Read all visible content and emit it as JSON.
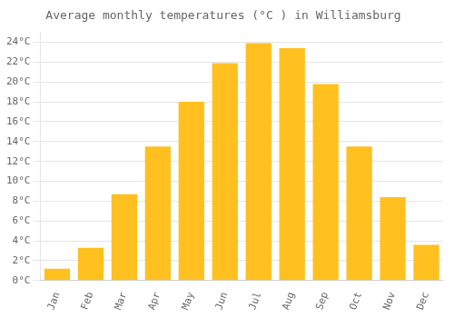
{
  "chart_data": {
    "type": "bar",
    "title": "Average monthly temperatures (°C ) in Williamsburg",
    "categories": [
      "Jan",
      "Feb",
      "Mar",
      "Apr",
      "May",
      "Jun",
      "Jul",
      "Aug",
      "Sep",
      "Oct",
      "Nov",
      "Dec"
    ],
    "values": [
      1.2,
      3.3,
      8.7,
      13.5,
      18.0,
      21.9,
      23.9,
      23.4,
      19.8,
      13.5,
      8.4,
      3.6
    ],
    "color": "#FFC020",
    "ylim": [
      0,
      25
    ],
    "yticks": [
      {
        "value": 0,
        "label": "0°C"
      },
      {
        "value": 2,
        "label": "2°C"
      },
      {
        "value": 4,
        "label": "4°C"
      },
      {
        "value": 6,
        "label": "6°C"
      },
      {
        "value": 8,
        "label": "8°C"
      },
      {
        "value": 10,
        "label": "10°C"
      },
      {
        "value": 12,
        "label": "12°C"
      },
      {
        "value": 14,
        "label": "14°C"
      },
      {
        "value": 16,
        "label": "16°C"
      },
      {
        "value": 18,
        "label": "18°C"
      },
      {
        "value": 20,
        "label": "20°C"
      },
      {
        "value": 22,
        "label": "22°C"
      },
      {
        "value": 24,
        "label": "24°C"
      }
    ],
    "grid": true
  }
}
